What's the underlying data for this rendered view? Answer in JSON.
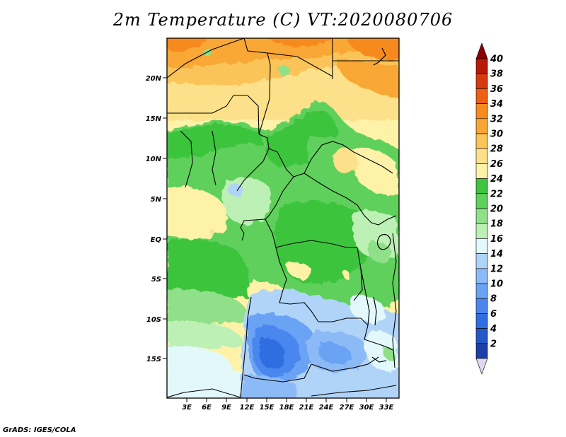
{
  "title": "2m Temperature (C) VT:2020080706",
  "credit": "GrADS: IGES/COLA",
  "map": {
    "lat_labels": [
      "20N",
      "15N",
      "10N",
      "5N",
      "EQ",
      "5S",
      "10S",
      "15S"
    ],
    "lon_labels": [
      "3E",
      "6E",
      "9E",
      "12E",
      "15E",
      "18E",
      "21E",
      "24E",
      "27E",
      "30E",
      "33E"
    ]
  },
  "colorbar": {
    "labels": [
      "2",
      "4",
      "6",
      "8",
      "10",
      "12",
      "14",
      "16",
      "18",
      "20",
      "22",
      "24",
      "26",
      "28",
      "30",
      "32",
      "34",
      "36",
      "38",
      "40"
    ],
    "colors": [
      "#0b1a78",
      "#1c3fa8",
      "#2458c8",
      "#2f6ee0",
      "#4a86ee",
      "#6aa2f4",
      "#8cbaf6",
      "#b0d4f8",
      "#e2f8fb",
      "#bdf0b4",
      "#8fe088",
      "#5fd05c",
      "#3ec43e",
      "#fdf2a8",
      "#fde18a",
      "#fbc458",
      "#f9a734",
      "#f68a1e",
      "#ee6014",
      "#d83a10",
      "#b81a0a",
      "#8c0000"
    ],
    "under_color": "#e0d8ef",
    "over_color": "#8c0000"
  }
}
